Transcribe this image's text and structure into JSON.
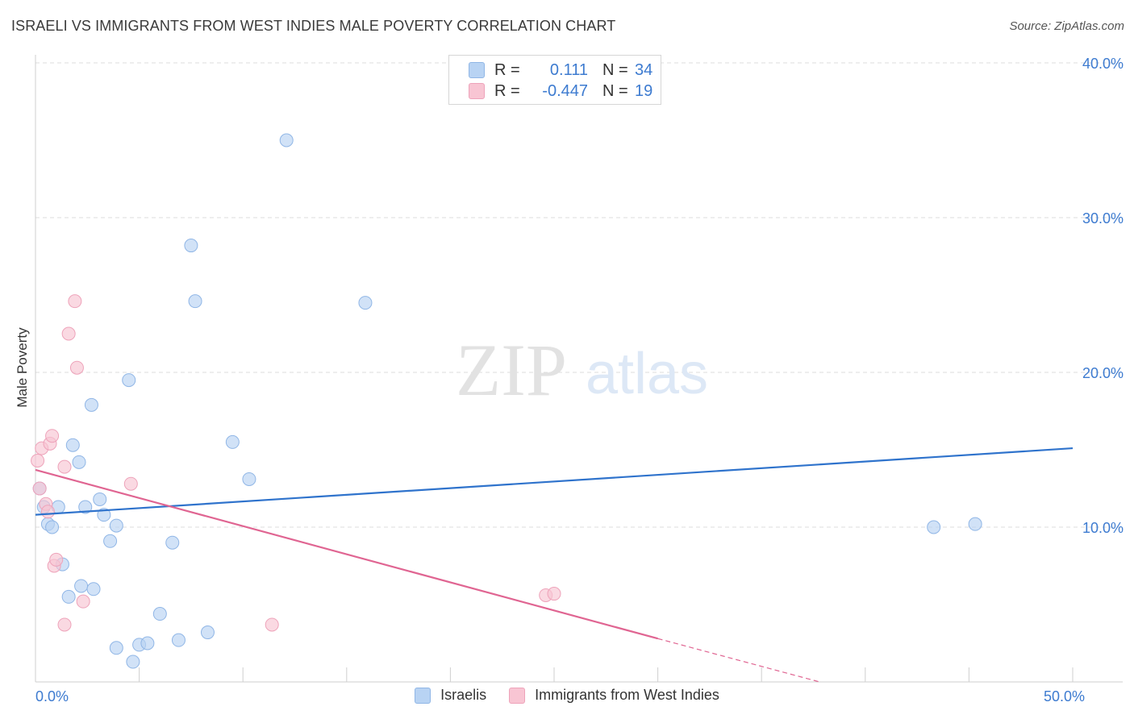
{
  "header": {
    "title": "ISRAELI VS IMMIGRANTS FROM WEST INDIES MALE POVERTY CORRELATION CHART",
    "source": "Source: ZipAtlas.com"
  },
  "watermark": {
    "zip": "ZIP",
    "atlas": "atlas"
  },
  "colors": {
    "blue_fill": "#b8d3f3",
    "blue_stroke": "#90b6e6",
    "blue_line": "#2f73cc",
    "pink_fill": "#f8c5d3",
    "pink_stroke": "#eea3ba",
    "pink_line": "#e06592",
    "tick_color": "#3d7bd0",
    "grid": "#dcdcdc"
  },
  "legend_top": {
    "rows": [
      {
        "r_label": "R =",
        "r_value": "0.111",
        "n_label": "N =",
        "n_value": "34"
      },
      {
        "r_label": "R =",
        "r_value": "-0.447",
        "n_label": "N =",
        "n_value": "19"
      }
    ]
  },
  "legend_bottom": {
    "items": [
      {
        "label": "Israelis"
      },
      {
        "label": "Immigrants from West Indies"
      }
    ]
  },
  "chart_data": {
    "type": "scatter",
    "title": "ISRAELI VS IMMIGRANTS FROM WEST INDIES MALE POVERTY CORRELATION CHART",
    "xlabel": "",
    "ylabel": "Male Poverty",
    "xlim": [
      0,
      50
    ],
    "ylim": [
      0,
      40
    ],
    "x_tick_labels": [
      "0.0%",
      "50.0%"
    ],
    "x_tick_values": [
      0,
      50
    ],
    "x_minor_ticks": [
      5,
      10,
      15,
      20,
      25,
      30,
      35,
      40,
      45
    ],
    "y_ticks": [
      10,
      20,
      30,
      40
    ],
    "y_tick_labels": [
      "10.0%",
      "20.0%",
      "30.0%",
      "40.0%"
    ],
    "grid": true,
    "legend_position": "top-center",
    "series": [
      {
        "name": "Israelis",
        "R": 0.111,
        "N": 34,
        "points": [
          [
            0.2,
            12.5
          ],
          [
            0.4,
            11.3
          ],
          [
            0.6,
            10.2
          ],
          [
            0.8,
            10.0
          ],
          [
            1.1,
            11.3
          ],
          [
            1.3,
            7.6
          ],
          [
            1.6,
            5.5
          ],
          [
            1.8,
            15.3
          ],
          [
            2.1,
            14.2
          ],
          [
            2.2,
            6.2
          ],
          [
            2.4,
            11.3
          ],
          [
            2.7,
            17.9
          ],
          [
            2.8,
            6.0
          ],
          [
            3.1,
            11.8
          ],
          [
            3.3,
            10.8
          ],
          [
            3.6,
            9.1
          ],
          [
            3.9,
            10.1
          ],
          [
            3.9,
            2.2
          ],
          [
            4.5,
            19.5
          ],
          [
            4.7,
            1.3
          ],
          [
            5.0,
            2.4
          ],
          [
            5.4,
            2.5
          ],
          [
            6.0,
            4.4
          ],
          [
            6.6,
            9.0
          ],
          [
            6.9,
            2.7
          ],
          [
            7.5,
            28.2
          ],
          [
            7.7,
            24.6
          ],
          [
            8.3,
            3.2
          ],
          [
            9.5,
            15.5
          ],
          [
            10.3,
            13.1
          ],
          [
            12.1,
            35.0
          ],
          [
            15.9,
            24.5
          ],
          [
            43.3,
            10.0
          ],
          [
            45.3,
            10.2
          ]
        ],
        "trend": {
          "x": [
            0,
            50
          ],
          "y": [
            10.8,
            15.1
          ]
        }
      },
      {
        "name": "Immigrants from West Indies",
        "R": -0.447,
        "N": 19,
        "points": [
          [
            0.1,
            14.3
          ],
          [
            0.2,
            12.5
          ],
          [
            0.3,
            15.1
          ],
          [
            0.5,
            11.5
          ],
          [
            0.6,
            11.0
          ],
          [
            0.7,
            15.4
          ],
          [
            0.8,
            15.9
          ],
          [
            0.9,
            7.5
          ],
          [
            1.0,
            7.9
          ],
          [
            1.4,
            13.9
          ],
          [
            1.4,
            3.7
          ],
          [
            1.6,
            22.5
          ],
          [
            1.9,
            24.6
          ],
          [
            2.0,
            20.3
          ],
          [
            2.3,
            5.2
          ],
          [
            4.6,
            12.8
          ],
          [
            11.4,
            3.7
          ],
          [
            24.6,
            5.6
          ],
          [
            25.0,
            5.7
          ]
        ],
        "trend": {
          "x": [
            0,
            30
          ],
          "y": [
            13.7,
            2.8
          ]
        },
        "trend_dashed_extension": {
          "x": [
            30,
            37.8
          ],
          "y": [
            2.8,
            0.0
          ]
        }
      }
    ]
  }
}
